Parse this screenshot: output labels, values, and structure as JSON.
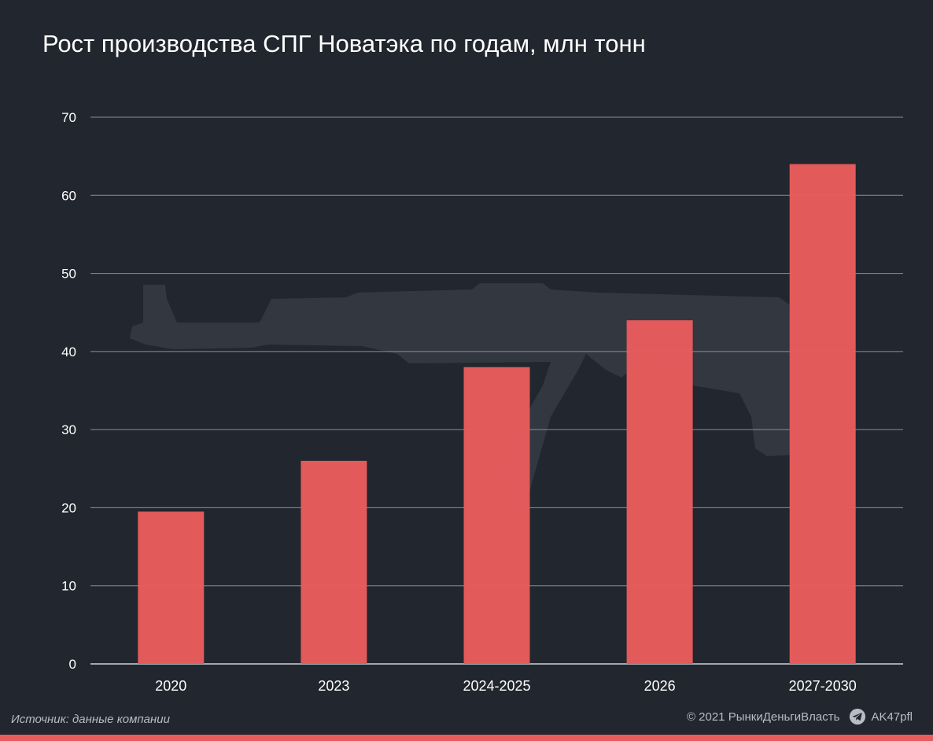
{
  "header": {
    "title": "Рост производства СПГ Новатэка по годам, млн тонн"
  },
  "footer": {
    "source": "Источник: данные компании",
    "copyright": "© 2021  РынкиДеньгиВласть",
    "handle": "AK47pfl",
    "handle_icon": "telegram-icon"
  },
  "colors": {
    "background": "#22262e",
    "bar": "#e85c5c",
    "grid": "#8a8e96",
    "text": "#ffffff",
    "muted": "#b8bcc4"
  },
  "chart_data": {
    "type": "bar",
    "title": "Рост производства СПГ Новатэка по годам, млн тонн",
    "categories": [
      "2020",
      "2023",
      "2024-2025",
      "2026",
      "2027-2030"
    ],
    "values": [
      19.5,
      26,
      38,
      44,
      64
    ],
    "ylim": [
      0,
      70
    ],
    "yticks": [
      0,
      10,
      20,
      30,
      40,
      50,
      60,
      70
    ],
    "xlabel": "",
    "ylabel": "",
    "grid": true,
    "legend": "none"
  }
}
